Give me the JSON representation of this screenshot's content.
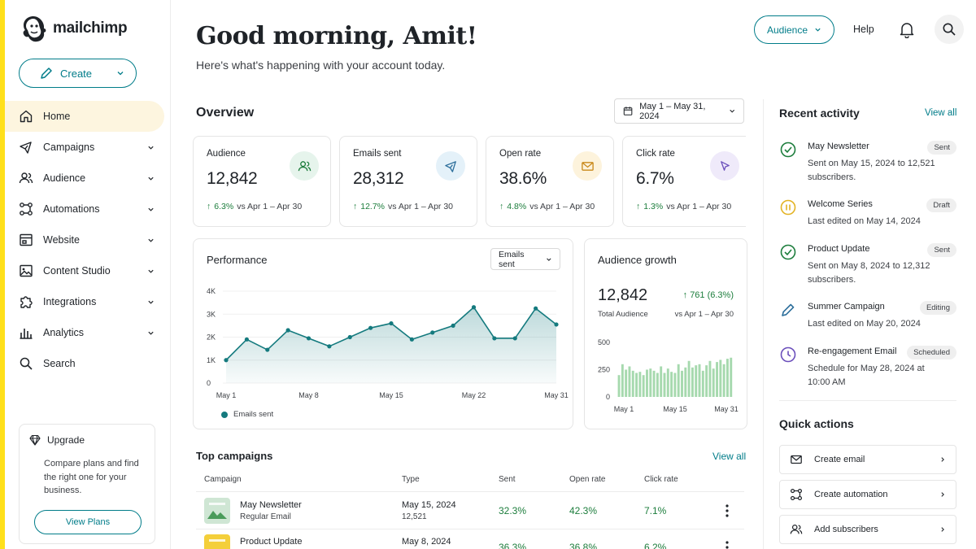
{
  "brand": {
    "name": "mailchimp",
    "accent": "#ffe01b",
    "primary": "#007c89"
  },
  "sidebar": {
    "create_label": "Create",
    "items": [
      {
        "label": "Home",
        "icon": "home-icon",
        "active": true,
        "has_chevron": false
      },
      {
        "label": "Campaigns",
        "icon": "megaphone-icon",
        "has_chevron": true
      },
      {
        "label": "Audience",
        "icon": "users-icon",
        "has_chevron": true
      },
      {
        "label": "Automations",
        "icon": "workflow-icon",
        "has_chevron": true
      },
      {
        "label": "Website",
        "icon": "browser-icon",
        "has_chevron": true
      },
      {
        "label": "Content Studio",
        "icon": "image-icon",
        "has_chevron": true
      },
      {
        "label": "Integrations",
        "icon": "puzzle-icon",
        "has_chevron": true
      },
      {
        "label": "Analytics",
        "icon": "bar-chart-icon",
        "has_chevron": true
      },
      {
        "label": "Search",
        "icon": "search-icon",
        "has_chevron": false
      }
    ],
    "upgrade": {
      "title": "Upgrade",
      "body": "Compare plans and find the right one for your business.",
      "button": "View Plans"
    }
  },
  "header": {
    "greeting": "Good morning, Amit!",
    "subtitle": "Here's what's happening with your account today.",
    "audience_button": "Audience",
    "help": "Help"
  },
  "overview": {
    "title": "Overview",
    "date_range": "May 1 – May 31, 2024",
    "stats": [
      {
        "label": "Audience",
        "value": "12,842",
        "change": "6.3%",
        "vs": "vs Apr 1 – Apr 30",
        "icon": "users-icon",
        "icon_bg": "#e6f4ec",
        "icon_color": "#1c7d3c"
      },
      {
        "label": "Emails sent",
        "value": "28,312",
        "change": "12.7%",
        "vs": "vs Apr 1 – Apr 30",
        "icon": "paper-plane-icon",
        "icon_bg": "#e4f1f9",
        "icon_color": "#2c6e9b"
      },
      {
        "label": "Open rate",
        "value": "38.6%",
        "change": "4.8%",
        "vs": "vs Apr 1 – Apr 30",
        "icon": "envelope-icon",
        "icon_bg": "#fdf3dc",
        "icon_color": "#c9891a"
      },
      {
        "label": "Click rate",
        "value": "6.7%",
        "change": "1.3%",
        "vs": "vs Apr 1 – Apr 30",
        "icon": "cursor-icon",
        "icon_bg": "#efeafa",
        "icon_color": "#6b4fbb"
      }
    ]
  },
  "performance": {
    "title": "Performance",
    "select": "Emails sent",
    "legend": "Emails sent",
    "chart_data": {
      "type": "area",
      "series": [
        {
          "name": "Emails sent",
          "values": [
            1000,
            1900,
            1450,
            2300,
            1950,
            1600,
            2000,
            2400,
            2600,
            1900,
            2200,
            2500,
            3300,
            1950,
            1950,
            3250,
            2550
          ]
        }
      ],
      "yticks": [
        "0",
        "1K",
        "2K",
        "3K",
        "4K"
      ],
      "ylim": [
        0,
        4000
      ],
      "xticks": [
        "May 1",
        "May 8",
        "May 15",
        "May 22",
        "May 31"
      ],
      "color": "#147a7e"
    }
  },
  "growth": {
    "title": "Audience growth",
    "value": "12,842",
    "value_label": "Total Audience",
    "change": "761 (6.3%)",
    "vs": "vs Apr 1 – Apr 30",
    "chart_data": {
      "type": "bar",
      "values": [
        200,
        300,
        250,
        280,
        240,
        220,
        230,
        200,
        250,
        260,
        240,
        220,
        280,
        220,
        260,
        230,
        220,
        300,
        240,
        270,
        330,
        270,
        290,
        300,
        240,
        290,
        330,
        260,
        320,
        340,
        300,
        350,
        360
      ],
      "yticks": [
        "0",
        "250",
        "500"
      ],
      "ylim": [
        0,
        500
      ],
      "xticks": [
        "May 1",
        "May 15",
        "May 31"
      ],
      "color": "#a6d9ae"
    }
  },
  "campaigns": {
    "title": "Top campaigns",
    "view_all": "View all",
    "columns": [
      "Campaign",
      "Type",
      "Sent",
      "Open rate",
      "Click rate"
    ],
    "rows": [
      {
        "name": "May Newsletter",
        "type": "Regular Email",
        "date": "May 15, 2024",
        "count": "12,521",
        "sent": "32.3%",
        "open": "42.3%",
        "click": "7.1%",
        "thumb": "#cfe6d4"
      },
      {
        "name": "Product Update",
        "type": "",
        "date": "May 8, 2024",
        "count": "",
        "sent": "36.3%",
        "open": "36.8%",
        "click": "6.2%",
        "thumb": "#f4cf3a"
      }
    ]
  },
  "activity": {
    "title": "Recent activity",
    "view_all": "View all",
    "items": [
      {
        "title": "May Newsletter",
        "badge": "Sent",
        "desc": "Sent on May 15, 2024 to 12,521 subscribers.",
        "icon": "check-circle-icon"
      },
      {
        "title": "Welcome Series",
        "badge": "Draft",
        "desc": "Last edited on May 14, 2024",
        "icon": "pause-circle-icon"
      },
      {
        "title": "Product Update",
        "badge": "Sent",
        "desc": "Sent on May 8, 2024 to 12,312 subscribers.",
        "icon": "check-circle-icon"
      },
      {
        "title": "Summer Campaign",
        "badge": "Editing",
        "desc": "Last edited on May 20, 2024",
        "icon": "pencil-icon"
      },
      {
        "title": "Re-engagement Email",
        "badge": "Scheduled",
        "desc": "Schedule for May 28, 2024 at 10:00 AM",
        "icon": "clock-icon"
      }
    ]
  },
  "quick_actions": {
    "title": "Quick actions",
    "items": [
      {
        "label": "Create email",
        "icon": "envelope-icon"
      },
      {
        "label": "Create automation",
        "icon": "workflow-icon"
      },
      {
        "label": "Add subscribers",
        "icon": "users-icon"
      }
    ]
  }
}
